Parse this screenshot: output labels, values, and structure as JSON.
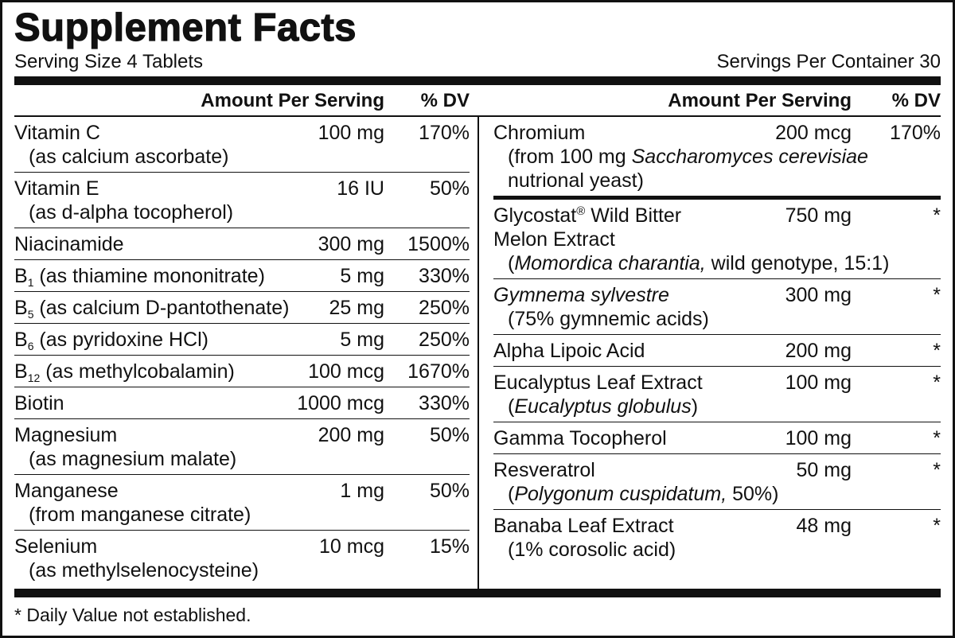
{
  "title": "Supplement Facts",
  "serving_size": "Serving Size 4 Tablets",
  "servings_per_container": "Servings Per Container 30",
  "left": {
    "header": {
      "amount": "Amount Per Serving",
      "dv": "% DV"
    },
    "rows": [
      {
        "name": [
          [
            "Vitamin C"
          ]
        ],
        "amount": "100 mg",
        "dv": "170%",
        "detail": [
          [
            "(as calcium ascorbate)"
          ]
        ]
      },
      {
        "name": [
          [
            "Vitamin E"
          ]
        ],
        "amount": "16 IU",
        "dv": "50%",
        "detail": [
          [
            "(as d-alpha tocopherol)"
          ]
        ]
      },
      {
        "name": [
          [
            "Niacinamide"
          ]
        ],
        "amount": "300 mg",
        "dv": "1500%"
      },
      {
        "name": [
          [
            "B",
            {
              "sub": "1"
            },
            " (as thiamine mononitrate)"
          ]
        ],
        "amount": "5 mg",
        "dv": "330%"
      },
      {
        "name": [
          [
            "B",
            {
              "sub": "5"
            },
            " (as calcium D-pantothenate)"
          ]
        ],
        "amount": "25 mg",
        "dv": "250%"
      },
      {
        "name": [
          [
            "B",
            {
              "sub": "6"
            },
            " (as pyridoxine HCl)"
          ]
        ],
        "amount": "5 mg",
        "dv": "250%"
      },
      {
        "name": [
          [
            "B",
            {
              "sub": "12"
            },
            " (as methylcobalamin)"
          ]
        ],
        "amount": "100 mcg",
        "dv": "1670%"
      },
      {
        "name": [
          [
            "Biotin"
          ]
        ],
        "amount": "1000 mcg",
        "dv": "330%"
      },
      {
        "name": [
          [
            "Magnesium"
          ]
        ],
        "amount": "200 mg",
        "dv": "50%",
        "detail": [
          [
            "(as magnesium malate)"
          ]
        ]
      },
      {
        "name": [
          [
            "Manganese"
          ]
        ],
        "amount": "1 mg",
        "dv": "50%",
        "detail": [
          [
            "(from manganese citrate)"
          ]
        ]
      },
      {
        "name": [
          [
            "Selenium"
          ]
        ],
        "amount": "10 mcg",
        "dv": "15%",
        "detail": [
          [
            "(as methylselenocysteine)"
          ]
        ]
      }
    ]
  },
  "right": {
    "header": {
      "amount": "Amount Per Serving",
      "dv": "% DV"
    },
    "rows": [
      {
        "name": [
          [
            "Chromium"
          ]
        ],
        "amount": "200 mcg",
        "dv": "170%",
        "detail": [
          [
            "(from 100 mg ",
            {
              "italic": "Saccharomyces cerevisiae"
            }
          ],
          [
            "nutrional yeast)"
          ]
        ]
      },
      {
        "name": [
          [
            "Glycostat",
            {
              "sup": "®"
            },
            " Wild Bitter"
          ],
          [
            "Melon Extract"
          ]
        ],
        "amount": "750 mg",
        "dv": "*",
        "detail": [
          [
            "(",
            {
              "italic": "Momordica charantia,"
            },
            " wild genotype, 15:1)"
          ]
        ]
      },
      {
        "name": [
          [
            {
              "italic": "Gymnema sylvestre"
            }
          ]
        ],
        "amount": "300 mg",
        "dv": "*",
        "detail": [
          [
            "(75% gymnemic acids)"
          ]
        ]
      },
      {
        "name": [
          [
            "Alpha Lipoic Acid"
          ]
        ],
        "amount": "200 mg",
        "dv": "*"
      },
      {
        "name": [
          [
            "Eucalyptus Leaf Extract"
          ]
        ],
        "amount": "100 mg",
        "dv": "*",
        "detail": [
          [
            "(",
            {
              "italic": "Eucalyptus globulus"
            },
            ")"
          ]
        ]
      },
      {
        "name": [
          [
            "Gamma Tocopherol"
          ]
        ],
        "amount": "100 mg",
        "dv": "*"
      },
      {
        "name": [
          [
            "Resveratrol"
          ]
        ],
        "amount": "50 mg",
        "dv": "*",
        "detail": [
          [
            "(",
            {
              "italic": "Polygonum cuspidatum,"
            },
            " 50%)"
          ]
        ]
      },
      {
        "name": [
          [
            "Banaba Leaf Extract"
          ]
        ],
        "amount": "48 mg",
        "dv": "*",
        "detail": [
          [
            "(1% corosolic acid)"
          ]
        ]
      }
    ]
  },
  "footnote": "* Daily Value not established."
}
